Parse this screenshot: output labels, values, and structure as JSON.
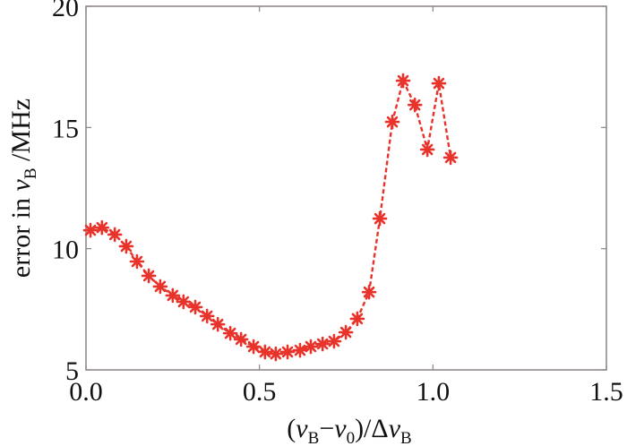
{
  "chart_data": {
    "type": "line",
    "title": "",
    "xlabel": {
      "open": "(",
      "nu1": "ν",
      "sub1": "B",
      "minus": "−",
      "nu2": "ν",
      "sub2": "0",
      "slash": ")/Δ",
      "nu3": "ν",
      "sub3": "B"
    },
    "ylabel": {
      "prefix": "error in ",
      "nu": "ν",
      "sub": "B",
      "suffix": " /MHz"
    },
    "xlim": [
      0.0,
      1.5
    ],
    "ylim": [
      5,
      20
    ],
    "x_ticks": [
      0.0,
      0.5,
      1.0,
      1.5
    ],
    "x_tick_labels": [
      "0.0",
      "0.5",
      "1.0",
      "1.5"
    ],
    "y_ticks": [
      5,
      10,
      15,
      20
    ],
    "y_tick_labels": [
      "5",
      "10",
      "15",
      "20"
    ],
    "grid": false,
    "legend": null,
    "series": [
      {
        "name": "error",
        "color": "#e8332b",
        "line_style": "dashed",
        "marker": "asterisk",
        "x": [
          0.013,
          0.046,
          0.083,
          0.116,
          0.147,
          0.181,
          0.214,
          0.25,
          0.281,
          0.315,
          0.349,
          0.38,
          0.416,
          0.447,
          0.483,
          0.516,
          0.547,
          0.581,
          0.617,
          0.648,
          0.682,
          0.715,
          0.749,
          0.782,
          0.816,
          0.847,
          0.883,
          0.914,
          0.948,
          0.984,
          1.017,
          1.051
        ],
        "y": [
          10.76,
          10.87,
          10.58,
          10.1,
          9.47,
          8.88,
          8.44,
          8.07,
          7.81,
          7.59,
          7.22,
          6.88,
          6.51,
          6.26,
          5.96,
          5.74,
          5.66,
          5.74,
          5.81,
          5.96,
          6.07,
          6.18,
          6.55,
          7.11,
          8.21,
          11.24,
          15.23,
          16.93,
          15.93,
          14.09,
          16.82,
          13.76
        ]
      }
    ],
    "axis_color": "#8a8482"
  }
}
